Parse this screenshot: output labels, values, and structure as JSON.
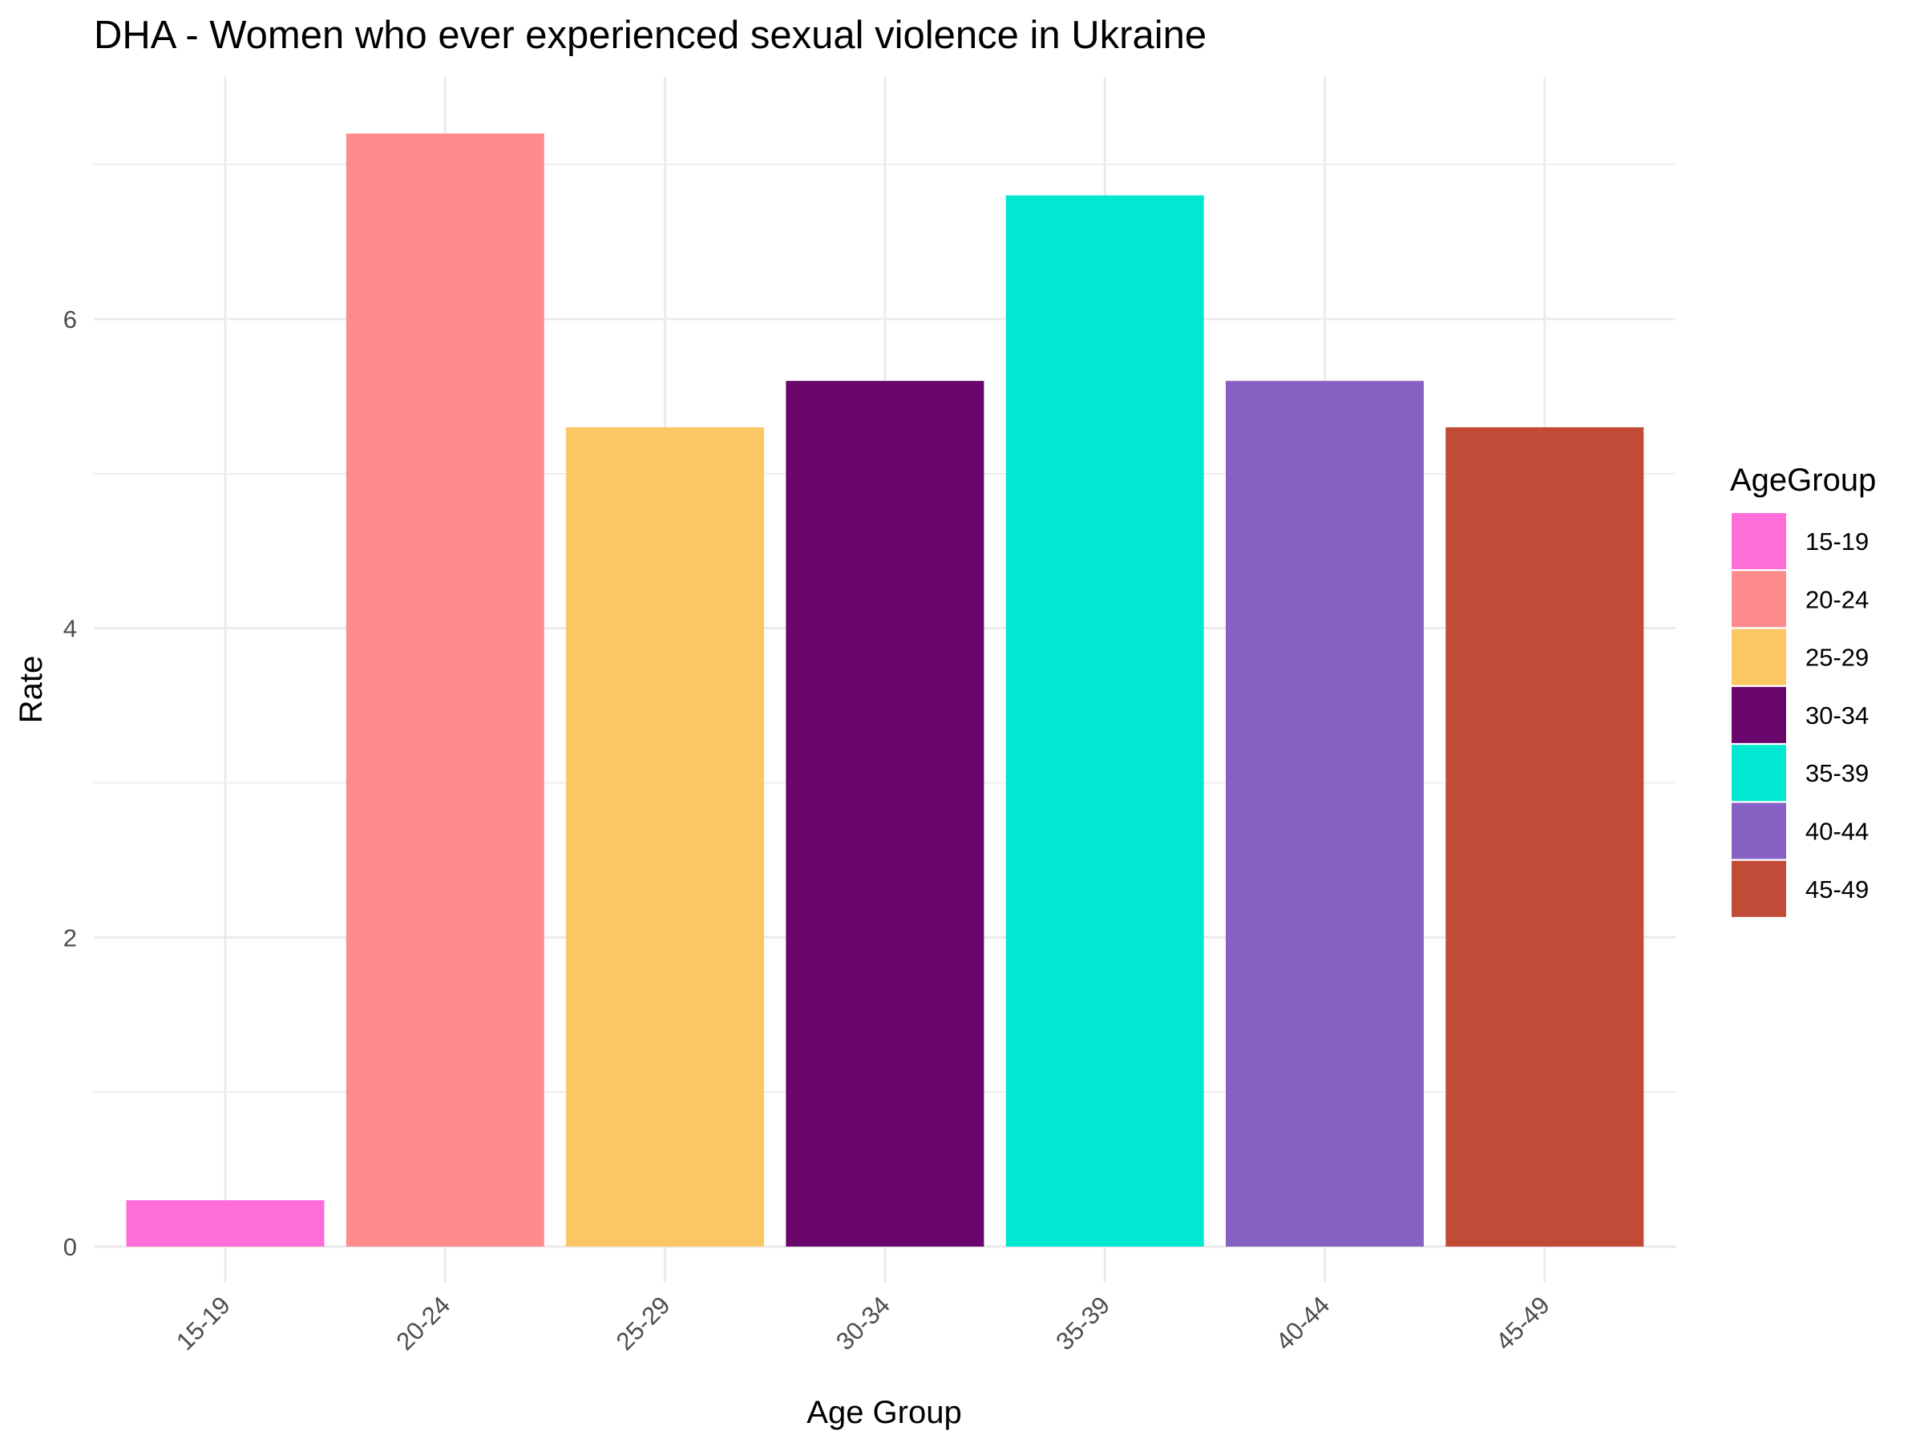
{
  "chart_data": {
    "type": "bar",
    "title": "DHA - Women who ever experienced sexual violence in Ukraine",
    "xlabel": "Age Group",
    "ylabel": "Rate",
    "categories": [
      "15-19",
      "20-24",
      "25-29",
      "30-34",
      "35-39",
      "40-44",
      "45-49"
    ],
    "values": [
      0.3,
      7.2,
      5.3,
      5.6,
      6.8,
      5.6,
      5.3
    ],
    "colors": [
      "#FF6ED8",
      "#FF8C8C",
      "#FCC662",
      "#6A056C",
      "#00E8D1",
      "#8660C3",
      "#C24B37"
    ],
    "ylim": [
      0,
      7.5
    ],
    "yticks": [
      0,
      2,
      4,
      6
    ],
    "grid": true,
    "legend": {
      "title": "AgeGroup",
      "position": "right",
      "entries": [
        "15-19",
        "20-24",
        "25-29",
        "30-34",
        "35-39",
        "40-44",
        "45-49"
      ]
    }
  }
}
